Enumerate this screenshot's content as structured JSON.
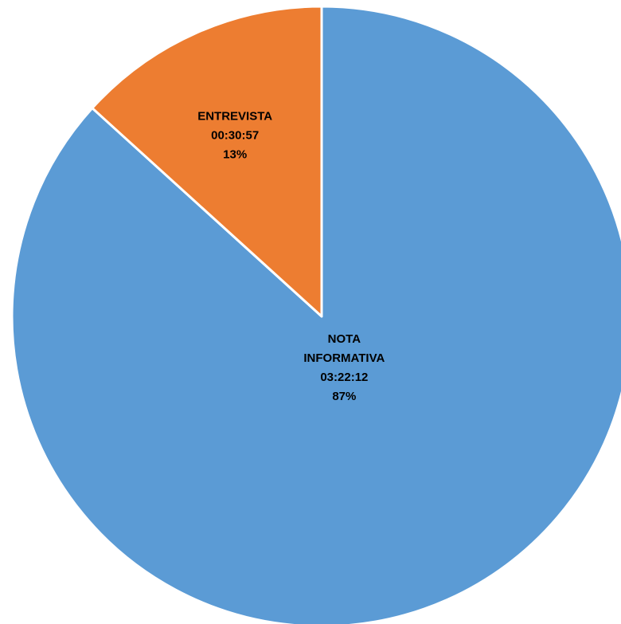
{
  "chart_data": {
    "type": "pie",
    "title": "",
    "start_angle_deg": 0,
    "direction": "clockwise",
    "slices": [
      {
        "category": "NOTA INFORMATIVA",
        "label_lines": [
          "NOTA",
          "INFORMATIVA"
        ],
        "duration": "03:22:12",
        "percent_label": "87%",
        "seconds": 12132,
        "color": "#5b9bd5"
      },
      {
        "category": "ENTREVISTA",
        "label_lines": [
          "ENTREVISTA"
        ],
        "duration": "00:30:57",
        "percent_label": "13%",
        "seconds": 1857,
        "color": "#ed7d31"
      }
    ],
    "legend": "none",
    "slice_border_color": "#ffffff"
  }
}
